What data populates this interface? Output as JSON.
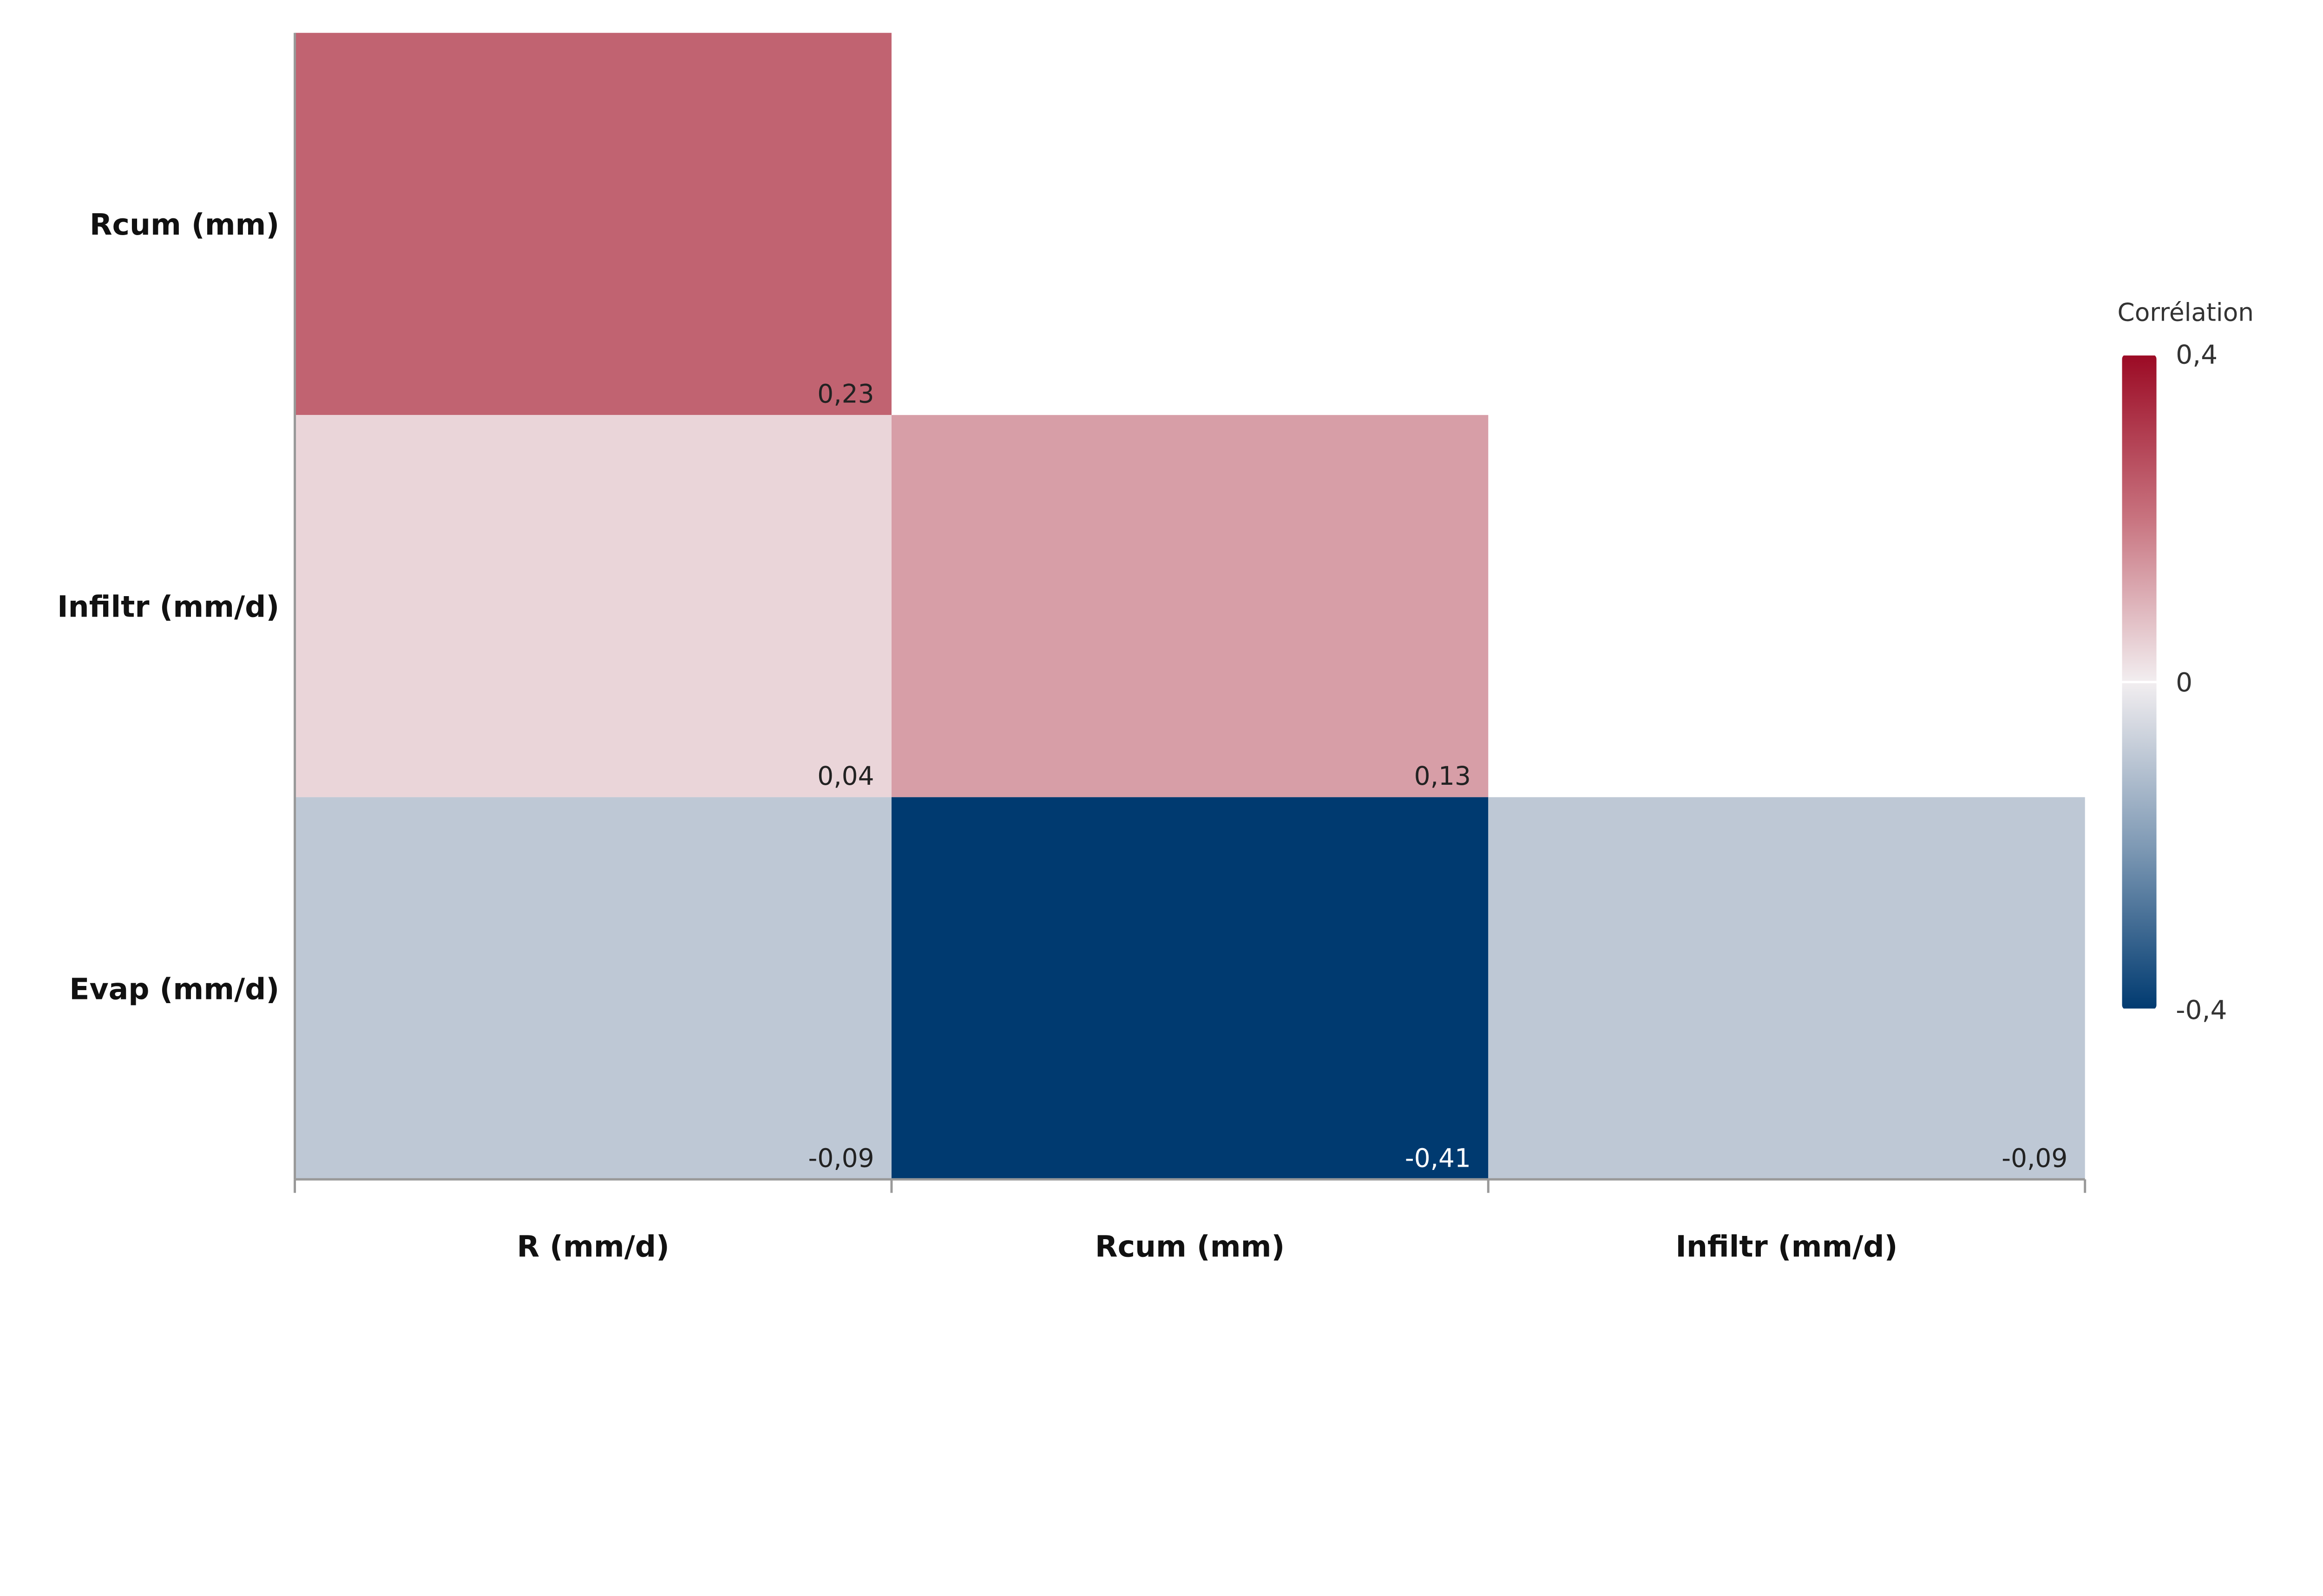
{
  "chart_data": {
    "type": "heatmap",
    "title": "",
    "x_categories": [
      "R (mm/d)",
      "Rcum (mm)",
      "Infiltr (mm/d)"
    ],
    "y_categories": [
      "Rcum (mm)",
      "Infiltr (mm/d)",
      "Evap (mm/d)"
    ],
    "cells": [
      {
        "x": "R (mm/d)",
        "y": "Rcum (mm)",
        "value": 0.23,
        "label": "0,23"
      },
      {
        "x": "R (mm/d)",
        "y": "Infiltr (mm/d)",
        "value": 0.04,
        "label": "0,04"
      },
      {
        "x": "Rcum (mm)",
        "y": "Infiltr (mm/d)",
        "value": 0.13,
        "label": "0,13"
      },
      {
        "x": "R (mm/d)",
        "y": "Evap (mm/d)",
        "value": -0.09,
        "label": "-0,09"
      },
      {
        "x": "Rcum (mm)",
        "y": "Evap (mm/d)",
        "value": -0.41,
        "label": "-0,41"
      },
      {
        "x": "Infiltr (mm/d)",
        "y": "Evap (mm/d)",
        "value": -0.09,
        "label": "-0,09"
      }
    ],
    "colorbar": {
      "title": "Corrélation",
      "range": [
        -0.4,
        0.4
      ],
      "ticks": [
        {
          "value": 0.4,
          "label": "0,4"
        },
        {
          "value": 0,
          "label": "0"
        },
        {
          "value": -0.4,
          "label": "-0,4"
        }
      ],
      "colors": [
        {
          "value": -0.4,
          "color": "#003a70"
        },
        {
          "value": -0.2,
          "color": "#7f9ab5"
        },
        {
          "value": 0,
          "color": "#f2eef0"
        },
        {
          "value": 0.2,
          "color": "#c8737f"
        },
        {
          "value": 0.4,
          "color": "#9b0a24"
        }
      ],
      "placement": "right"
    },
    "grid": false
  }
}
